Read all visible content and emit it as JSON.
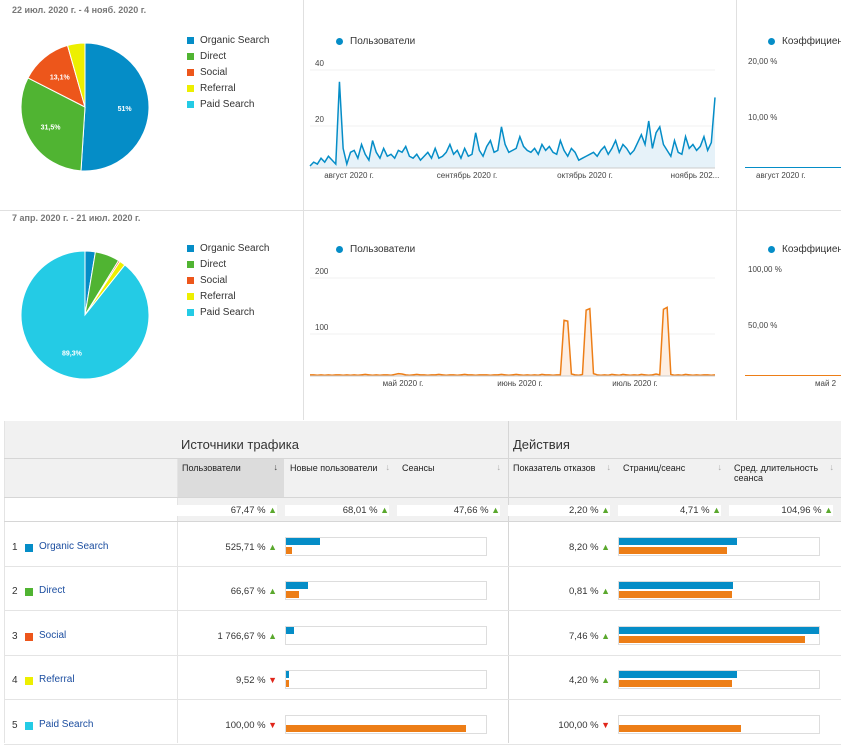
{
  "period1": {
    "label": "22 июл. 2020 г. - 4 нояб. 2020 г.",
    "pie": [
      {
        "name": "Organic Search",
        "value": 51,
        "label": "51%"
      },
      {
        "name": "Direct",
        "value": 31.5,
        "label": "31,5%"
      },
      {
        "name": "Social",
        "value": 13.1,
        "label": "13,1%"
      },
      {
        "name": "Referral",
        "value": 4.4,
        "label": ""
      },
      {
        "name": "Paid Search",
        "value": 0.0,
        "label": ""
      }
    ],
    "chart": {
      "series_label": "Пользователи",
      "yticks": [
        "40",
        "20"
      ],
      "xticks": [
        "август 2020 г.",
        "сентябрь 2020 г.",
        "октябрь 2020 г.",
        "ноябрь 202..."
      ],
      "values": [
        1,
        3,
        2,
        5,
        3,
        6,
        4,
        2,
        44,
        10,
        2,
        8,
        9,
        5,
        12,
        7,
        4,
        14,
        8,
        5,
        10,
        6,
        7,
        5,
        9,
        8,
        11,
        6,
        5,
        7,
        4,
        6,
        8,
        5,
        10,
        5,
        6,
        8,
        12,
        7,
        9,
        5,
        10,
        6,
        7,
        18,
        9,
        6,
        11,
        14,
        8,
        9,
        21,
        12,
        8,
        9,
        10,
        16,
        11,
        9,
        8,
        10,
        7,
        12,
        9,
        11,
        8,
        7,
        14,
        9,
        6,
        10,
        8,
        4,
        5,
        6,
        7,
        8,
        6,
        9,
        11,
        7,
        10,
        14,
        8,
        12,
        10,
        7,
        9,
        13,
        17,
        12,
        24,
        10,
        18,
        21,
        12,
        9,
        6,
        14,
        8,
        7,
        16,
        10,
        12,
        9,
        11,
        16,
        9,
        13,
        36
      ]
    },
    "right_chart": {
      "series_label": "Коэффициент",
      "yticks": [
        "20,00 %",
        "10,00 %"
      ],
      "xtick": "август 2020 г."
    }
  },
  "period2": {
    "label": "7 апр. 2020 г. - 21 июл. 2020 г.",
    "pie": [
      {
        "name": "Organic Search",
        "value": 2.6,
        "label": ""
      },
      {
        "name": "Direct",
        "value": 6.2,
        "label": ""
      },
      {
        "name": "Social",
        "value": 0.4,
        "label": ""
      },
      {
        "name": "Referral",
        "value": 1.5,
        "label": ""
      },
      {
        "name": "Paid Search",
        "value": 89.3,
        "label": "89,3%"
      }
    ],
    "chart": {
      "series_label": "Пользователи",
      "yticks": [
        "200",
        "100"
      ],
      "xticks": [
        "май 2020 г.",
        "июнь 2020 г.",
        "июль 2020 г."
      ],
      "values": [
        3,
        3,
        2,
        3,
        2,
        3,
        2,
        3,
        3,
        2,
        3,
        2,
        3,
        2,
        3,
        4,
        3,
        2,
        3,
        2,
        3,
        3,
        2,
        4,
        6,
        5,
        3,
        2,
        3,
        4,
        3,
        3,
        2,
        3,
        3,
        4,
        3,
        2,
        3,
        3,
        2,
        3,
        4,
        3,
        3,
        2,
        3,
        3,
        3,
        2,
        3,
        3,
        4,
        3,
        2,
        3,
        4,
        3,
        2,
        3,
        2,
        3,
        2,
        4,
        3,
        3,
        2,
        3,
        3,
        142,
        140,
        5,
        3,
        2,
        4,
        168,
        172,
        6,
        3,
        2,
        3,
        2,
        4,
        3,
        2,
        4,
        3,
        2,
        3,
        2,
        4,
        3,
        2,
        3,
        5,
        3,
        170,
        175,
        4,
        2,
        3,
        2,
        4,
        3,
        2,
        3,
        2,
        3,
        3,
        2,
        3
      ]
    },
    "right_chart": {
      "series_label": "Коэффициент",
      "yticks": [
        "100,00 %",
        "50,00 %"
      ],
      "xtick": "май 2"
    }
  },
  "colors": {
    "organic": "#058dc7",
    "direct": "#50b432",
    "social": "#ed561b",
    "referral": "#edef00",
    "paid": "#24cbe5",
    "blue": "#058dc7",
    "orange": "#ed7e17",
    "up": "#5aa82d",
    "down": "#e0261b"
  },
  "table": {
    "group1": "Источники трафика",
    "group2": "Действия",
    "columns": [
      "Пользователи",
      "Новые пользователи",
      "Сеансы",
      "Показатель отказов",
      "Страниц/сеанс",
      "Сред. длительность сеанса"
    ],
    "summary": [
      {
        "text": "67,47 %",
        "dir": "up"
      },
      {
        "text": "68,01 %",
        "dir": "up"
      },
      {
        "text": "47,66 %",
        "dir": "up"
      },
      {
        "text": "2,20 %",
        "dir": "up"
      },
      {
        "text": "4,71 %",
        "dir": "up"
      },
      {
        "text": "104,96 %",
        "dir": "up"
      }
    ],
    "rows": [
      {
        "num": "1",
        "name": "Organic Search",
        "color": "#058dc7",
        "users": "525,71 %",
        "users_dir": "up",
        "nu_blue": 0.17,
        "nu_orange": 0.03,
        "bounce": "8,20 %",
        "bounce_dir": "up",
        "pps_blue": 0.59,
        "pps_orange": 0.54
      },
      {
        "num": "2",
        "name": "Direct",
        "color": "#50b432",
        "users": "66,67 %",
        "users_dir": "up",
        "nu_blue": 0.11,
        "nu_orange": 0.065,
        "bounce": "0,81 %",
        "bounce_dir": "up",
        "pps_blue": 0.57,
        "pps_orange": 0.565
      },
      {
        "num": "3",
        "name": "Social",
        "color": "#ed561b",
        "users": "1 766,67 %",
        "users_dir": "up",
        "nu_blue": 0.04,
        "nu_orange": 0.0,
        "bounce": "7,46 %",
        "bounce_dir": "up",
        "pps_blue": 1.0,
        "pps_orange": 0.93
      },
      {
        "num": "4",
        "name": "Referral",
        "color": "#edef00",
        "users": "9,52 %",
        "users_dir": "down",
        "nu_blue": 0.015,
        "nu_orange": 0.015,
        "bounce": "4,20 %",
        "bounce_dir": "up",
        "pps_blue": 0.59,
        "pps_orange": 0.565
      },
      {
        "num": "5",
        "name": "Paid Search",
        "color": "#24cbe5",
        "users": "100,00 %",
        "users_dir": "down",
        "nu_blue": 0.0,
        "nu_orange": 0.9,
        "bounce": "100,00 %",
        "bounce_dir": "down",
        "pps_blue": 0.0,
        "pps_orange": 0.61
      }
    ]
  }
}
